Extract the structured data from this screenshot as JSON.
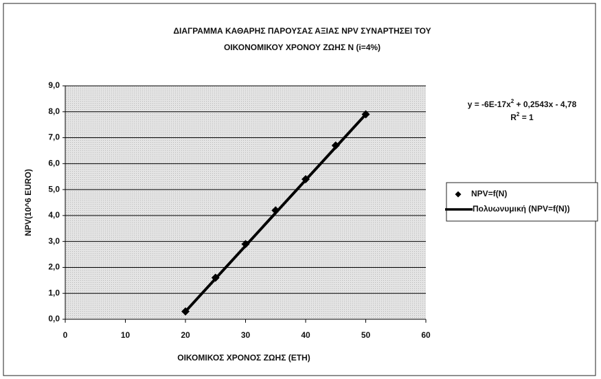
{
  "chart_data": {
    "type": "scatter",
    "title": [
      "ΔΙΑΓΡΑΜΜΑ ΚΑΘΑΡΗΣ ΠΑΡΟΥΣΑΣ ΑΞΙΑΣ NPV  ΣΥΝΑΡΤΗΣΕΙ ΤΟΥ",
      "ΟΙΚΟΝΟΜΙΚΟΥ ΧΡΟΝΟΥ ΖΩΗΣ N (i=4%)"
    ],
    "xlabel": "ΟΙΚΟΜΙΚΟΣ ΧΡΟΝΟΣ ΖΩΗΣ (ΕΤΗ)",
    "ylabel": "NPV(10^6 EURO)",
    "annotations": {
      "equation": [
        "y = -6E-17x",
        "2",
        " + 0,2543x - 4,78"
      ],
      "r2": [
        "R",
        "2",
        " = 1"
      ]
    },
    "series": [
      {
        "name": "NPV=f(N)",
        "color": "#000000",
        "marker": "diamond",
        "x": [
          20,
          25,
          30,
          35,
          40,
          45,
          50
        ],
        "values": [
          0.3,
          1.6,
          2.9,
          4.2,
          5.4,
          6.7,
          7.9
        ]
      },
      {
        "name": "Πολυωνυμική (NPV=f(N))",
        "color": "#000000",
        "marker": "line",
        "x": [
          20,
          50
        ],
        "values": [
          0.3,
          7.9
        ]
      }
    ],
    "xlim": [
      0,
      60
    ],
    "xticks": [
      0,
      10,
      20,
      30,
      40,
      50,
      60
    ],
    "ylim": [
      0,
      9
    ],
    "yticks": [
      {
        "value": 0,
        "label": "0,0"
      },
      {
        "value": 1,
        "label": "1,0"
      },
      {
        "value": 2,
        "label": "2,0"
      },
      {
        "value": 3,
        "label": "3,0"
      },
      {
        "value": 4,
        "label": "4,0"
      },
      {
        "value": 5,
        "label": "5,0"
      },
      {
        "value": 6,
        "label": "6,0"
      },
      {
        "value": 7,
        "label": "7,0"
      },
      {
        "value": 8,
        "label": "8,0"
      },
      {
        "value": 9,
        "label": "9,0"
      }
    ],
    "grid": true,
    "legend": "right"
  }
}
